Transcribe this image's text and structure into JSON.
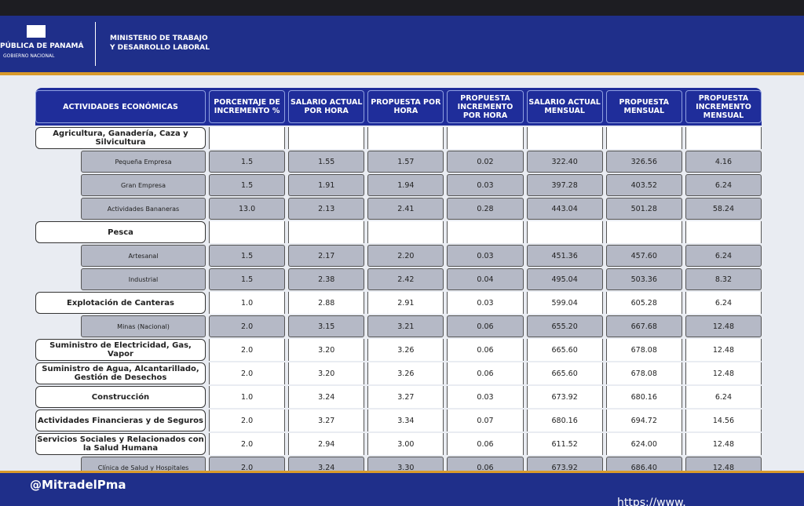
{
  "header": {
    "country": "PÚBLICA DE PANAMÁ",
    "government": "GOBIERNO NACIONAL",
    "ministry": [
      "MINISTERIO DE TRABAJO",
      "Y DESARROLLO LABORAL"
    ]
  },
  "table": {
    "columns": [
      "ACTIVIDADES ECONÓMICAS",
      "PORCENTAJE DE INCREMENTO %",
      "SALARIO ACTUAL POR HORA",
      "PROPUESTA POR HORA",
      "PROPUESTA INCREMENTO POR HORA",
      "SALARIO ACTUAL MENSUAL",
      "PROPUESTA MENSUAL",
      "PROPUESTA INCREMENTO MENSUAL"
    ],
    "rows": [
      [
        "Agricultura, Ganadería, Caza y Silvicultura"
      ],
      [
        "Pequeña Empresa",
        "1.5",
        "1.55",
        "1.57",
        "0.02",
        "322.40",
        "326.56",
        "4.16"
      ],
      [
        "Gran Empresa",
        "1.5",
        "1.91",
        "1.94",
        "0.03",
        "397.28",
        "403.52",
        "6.24"
      ],
      [
        "Actividades Bananeras",
        "13.0",
        "2.13",
        "2.41",
        "0.28",
        "443.04",
        "501.28",
        "58.24"
      ],
      [
        "Pesca"
      ],
      [
        "Artesanal",
        "1.5",
        "2.17",
        "2.20",
        "0.03",
        "451.36",
        "457.60",
        "6.24"
      ],
      [
        "Industrial",
        "1.5",
        "2.38",
        "2.42",
        "0.04",
        "495.04",
        "503.36",
        "8.32"
      ],
      [
        "Explotación de Canteras",
        "1.0",
        "2.88",
        "2.91",
        "0.03",
        "599.04",
        "605.28",
        "6.24"
      ],
      [
        "Minas (Nacional)",
        "2.0",
        "3.15",
        "3.21",
        "0.06",
        "655.20",
        "667.68",
        "12.48"
      ],
      [
        "Suministro de Electricidad, Gas, Vapor",
        "2.0",
        "3.20",
        "3.26",
        "0.06",
        "665.60",
        "678.08",
        "12.48"
      ],
      [
        "Suministro de Agua, Alcantarillado, Gestión de Desechos",
        "2.0",
        "3.20",
        "3.26",
        "0.06",
        "665.60",
        "678.08",
        "12.48"
      ],
      [
        "Construcción",
        "1.0",
        "3.24",
        "3.27",
        "0.03",
        "673.92",
        "680.16",
        "6.24"
      ],
      [
        "Actividades Financieras y de Seguros",
        "2.0",
        "3.27",
        "3.34",
        "0.07",
        "680.16",
        "694.72",
        "14.56"
      ],
      [
        "Servicios Sociales y Relacionados con la Salud Humana",
        "2.0",
        "2.94",
        "3.00",
        "0.06",
        "611.52",
        "624.00",
        "12.48"
      ],
      [
        "Clínica de Salud y Hospitales",
        "2.0",
        "3.24",
        "3.30",
        "0.06",
        "673.92",
        "686.40",
        "12.48"
      ]
    ],
    "subrows": [
      1,
      2,
      3,
      5,
      6,
      8,
      14
    ]
  },
  "footer": {
    "handle": "@MitradelPma",
    "url": "https://www."
  }
}
